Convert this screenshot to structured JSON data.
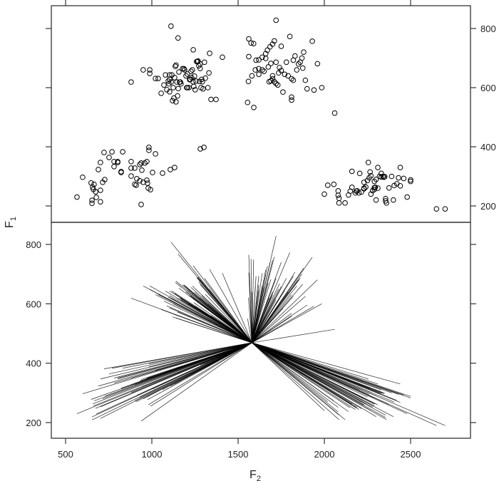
{
  "chart_data": [
    {
      "type": "scatter",
      "panel": "top",
      "title": "",
      "xlabel": "F2",
      "ylabel": "F1",
      "xlim": [
        420,
        2850
      ],
      "ylim": [
        150,
        870
      ],
      "x_ticks": [
        500,
        1000,
        1500,
        2000,
        2500
      ],
      "y_ticks": [
        200,
        400,
        600,
        800
      ],
      "y_tick_labels_side": "right",
      "x_ticks_side": "top",
      "grid": false,
      "marker": "open-circle",
      "points": [
        [
          566,
          230
        ],
        [
          599,
          297
        ],
        [
          648,
          278
        ],
        [
          657,
          263
        ],
        [
          665,
          273
        ],
        [
          661,
          256
        ],
        [
          674,
          248
        ],
        [
          678,
          229
        ],
        [
          702,
          214
        ],
        [
          653,
          219
        ],
        [
          653,
          209
        ],
        [
          702,
          253
        ],
        [
          715,
          280
        ],
        [
          727,
          289
        ],
        [
          690,
          323
        ],
        [
          702,
          347
        ],
        [
          723,
          381
        ],
        [
          752,
          364
        ],
        [
          769,
          383
        ],
        [
          781,
          350
        ],
        [
          781,
          333
        ],
        [
          802,
          350
        ],
        [
          802,
          347
        ],
        [
          822,
          316
        ],
        [
          822,
          313
        ],
        [
          831,
          383
        ],
        [
          880,
          350
        ],
        [
          880,
          328
        ],
        [
          880,
          301
        ],
        [
          901,
          328
        ],
        [
          909,
          270
        ],
        [
          901,
          273
        ],
        [
          913,
          292
        ],
        [
          930,
          285
        ],
        [
          930,
          340
        ],
        [
          938,
          345
        ],
        [
          942,
          321
        ],
        [
          950,
          280
        ],
        [
          959,
          345
        ],
        [
          971,
          350
        ],
        [
          983,
          398
        ],
        [
          983,
          388
        ],
        [
          971,
          287
        ],
        [
          979,
          260
        ],
        [
          975,
          277
        ],
        [
          992,
          255
        ],
        [
          1004,
          313
        ],
        [
          1021,
          376
        ],
        [
          938,
          205
        ],
        [
          1062,
          311
        ],
        [
          1107,
          323
        ],
        [
          1132,
          330
        ],
        [
          1281,
          393
        ],
        [
          1302,
          398
        ],
        [
          880,
          619
        ],
        [
          950,
          660
        ],
        [
          988,
          660
        ],
        [
          988,
          648
        ],
        [
          1021,
          631
        ],
        [
          1037,
          631
        ],
        [
          1070,
          609
        ],
        [
          1054,
          581
        ],
        [
          1079,
          643
        ],
        [
          1087,
          593
        ],
        [
          1095,
          622
        ],
        [
          1099,
          613
        ],
        [
          1103,
          586
        ],
        [
          1103,
          643
        ],
        [
          1103,
          628
        ],
        [
          1112,
          619
        ],
        [
          1116,
          643
        ],
        [
          1120,
          556
        ],
        [
          1124,
          600
        ],
        [
          1128,
          565
        ],
        [
          1132,
          634
        ],
        [
          1136,
          672
        ],
        [
          1140,
          676
        ],
        [
          1140,
          552
        ],
        [
          1145,
          619
        ],
        [
          1149,
          572
        ],
        [
          1153,
          597
        ],
        [
          1157,
          653
        ],
        [
          1161,
          619
        ],
        [
          1165,
          619
        ],
        [
          1169,
          613
        ],
        [
          1178,
          664
        ],
        [
          1186,
          664
        ],
        [
          1190,
          660
        ],
        [
          1198,
          640
        ],
        [
          1202,
          600
        ],
        [
          1206,
          600
        ],
        [
          1206,
          646
        ],
        [
          1215,
          600
        ],
        [
          1219,
          627
        ],
        [
          1223,
          628
        ],
        [
          1227,
          655
        ],
        [
          1231,
          634
        ],
        [
          1235,
          660
        ],
        [
          1239,
          620
        ],
        [
          1243,
          604
        ],
        [
          1247,
          639
        ],
        [
          1251,
          593
        ],
        [
          1256,
          622
        ],
        [
          1260,
          688
        ],
        [
          1264,
          688
        ],
        [
          1268,
          690
        ],
        [
          1272,
          674
        ],
        [
          1276,
          621
        ],
        [
          1280,
          665
        ],
        [
          1285,
          600
        ],
        [
          1289,
          628
        ],
        [
          1293,
          620
        ],
        [
          1297,
          596
        ],
        [
          1305,
          686
        ],
        [
          1310,
          632
        ],
        [
          1325,
          600
        ],
        [
          1343,
          560
        ],
        [
          1372,
          560
        ],
        [
          1111,
          808
        ],
        [
          1152,
          768
        ],
        [
          1240,
          728
        ],
        [
          1335,
          716
        ],
        [
          1409,
          703
        ],
        [
          1280,
          680
        ],
        [
          1331,
          650
        ],
        [
          1555,
          550
        ],
        [
          1591,
          533
        ],
        [
          1562,
          705
        ],
        [
          1562,
          765
        ],
        [
          1575,
          751
        ],
        [
          1590,
          749
        ],
        [
          1620,
          664
        ],
        [
          1604,
          693
        ],
        [
          1640,
          703
        ],
        [
          1660,
          715
        ],
        [
          1670,
          727
        ],
        [
          1685,
          738
        ],
        [
          1700,
          747
        ],
        [
          1710,
          758
        ],
        [
          1675,
          670
        ],
        [
          1690,
          682
        ],
        [
          1720,
          686
        ],
        [
          1735,
          650
        ],
        [
          1750,
          658
        ],
        [
          1770,
          645
        ],
        [
          1790,
          640
        ],
        [
          1810,
          630
        ],
        [
          1820,
          625
        ],
        [
          1840,
          660
        ],
        [
          1860,
          686
        ],
        [
          1875,
          666
        ],
        [
          1890,
          625
        ],
        [
          1900,
          596
        ],
        [
          1940,
          592
        ],
        [
          1985,
          600
        ],
        [
          2060,
          514
        ],
        [
          1720,
          828
        ],
        [
          1800,
          773
        ],
        [
          1930,
          757
        ],
        [
          1960,
          681
        ],
        [
          1780,
          686
        ],
        [
          1700,
          630
        ],
        [
          1710,
          620
        ],
        [
          1720,
          614
        ],
        [
          1650,
          655
        ],
        [
          1600,
          660
        ],
        [
          1580,
          640
        ],
        [
          1560,
          621
        ],
        [
          1620,
          645
        ],
        [
          1680,
          620
        ],
        [
          1730,
          609
        ],
        [
          1760,
          585
        ],
        [
          1810,
          568
        ],
        [
          1810,
          558
        ],
        [
          1850,
          680
        ],
        [
          1870,
          700
        ],
        [
          1880,
          720
        ],
        [
          1620,
          694
        ],
        [
          1660,
          699
        ],
        [
          1640,
          660
        ],
        [
          1690,
          623
        ],
        [
          1700,
          640
        ],
        [
          1740,
          668
        ],
        [
          1820,
          693
        ],
        [
          1830,
          707
        ],
        [
          1750,
          740
        ],
        [
          2000,
          240
        ],
        [
          2020,
          270
        ],
        [
          2055,
          273
        ],
        [
          2080,
          251
        ],
        [
          2080,
          236
        ],
        [
          2085,
          226
        ],
        [
          2085,
          210
        ],
        [
          2140,
          237
        ],
        [
          2150,
          250
        ],
        [
          2160,
          317
        ],
        [
          2180,
          244
        ],
        [
          2185,
          250
        ],
        [
          2190,
          251
        ],
        [
          2200,
          244
        ],
        [
          2205,
          310
        ],
        [
          2215,
          247
        ],
        [
          2230,
          260
        ],
        [
          2230,
          258
        ],
        [
          2240,
          264
        ],
        [
          2250,
          286
        ],
        [
          2255,
          347
        ],
        [
          2260,
          295
        ],
        [
          2265,
          315
        ],
        [
          2270,
          302
        ],
        [
          2280,
          252
        ],
        [
          2290,
          256
        ],
        [
          2290,
          262
        ],
        [
          2290,
          283
        ],
        [
          2295,
          263
        ],
        [
          2300,
          220
        ],
        [
          2300,
          290
        ],
        [
          2310,
          330
        ],
        [
          2310,
          260
        ],
        [
          2320,
          300
        ],
        [
          2330,
          310
        ],
        [
          2330,
          298
        ],
        [
          2345,
          297
        ],
        [
          2350,
          299
        ],
        [
          2355,
          225
        ],
        [
          2355,
          217
        ],
        [
          2360,
          210
        ],
        [
          2375,
          261
        ],
        [
          2390,
          300
        ],
        [
          2400,
          220
        ],
        [
          2405,
          269
        ],
        [
          2420,
          275
        ],
        [
          2430,
          295
        ],
        [
          2440,
          330
        ],
        [
          2440,
          268
        ],
        [
          2460,
          293
        ],
        [
          2480,
          230
        ],
        [
          2500,
          283
        ],
        [
          2500,
          288
        ],
        [
          2340,
          300
        ],
        [
          2270,
          240
        ],
        [
          2230,
          280
        ],
        [
          2160,
          263
        ],
        [
          2120,
          210
        ],
        [
          2650,
          190
        ],
        [
          2700,
          190
        ]
      ]
    },
    {
      "type": "line",
      "panel": "bottom",
      "subtype": "segments-from-center",
      "title": "",
      "xlabel": "F2",
      "ylabel": "F1",
      "xlim": [
        420,
        2850
      ],
      "ylim": [
        150,
        870
      ],
      "x_ticks": [
        500,
        1000,
        1500,
        2000,
        2500
      ],
      "x_tick_labels": [
        "500",
        "1000",
        "1500",
        "2000",
        "2500"
      ],
      "y_ticks": [
        200,
        400,
        600,
        800
      ],
      "y_tick_labels": [
        "200",
        "400",
        "600",
        "800"
      ],
      "y_tick_labels_side": "left",
      "grid": false,
      "center": [
        1580,
        469
      ],
      "note": "Each line connects the center point to one observed (F2, F1) point from the top panel."
    }
  ],
  "axes": {
    "x_title_main": "F",
    "x_title_sub": "2",
    "y_title_main": "F",
    "y_title_sub": "1",
    "top_y_tick_labels": [
      "200",
      "400",
      "600",
      "800"
    ],
    "bottom_x_tick_labels": [
      "500",
      "1000",
      "1500",
      "2000",
      "2500"
    ],
    "bottom_y_tick_labels": [
      "200",
      "400",
      "600",
      "800"
    ]
  },
  "style": {
    "axis_color": "#333333",
    "point_color": "#000000",
    "line_color": "#000000"
  }
}
